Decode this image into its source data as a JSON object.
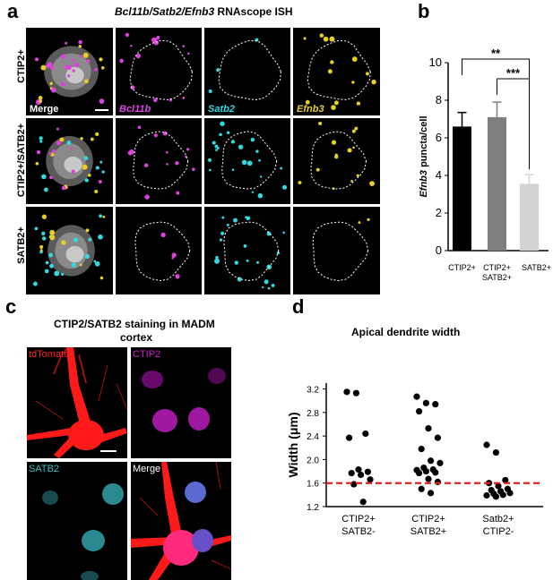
{
  "panels": {
    "a": {
      "letter": "a",
      "title_parts": [
        "Bcl11b",
        "/",
        "Satb2",
        "/",
        "Efnb3",
        " RNAscope ISH"
      ],
      "rows": [
        "CTIP2+",
        "CTIP2+/SATB2+",
        "SATB2+"
      ],
      "channels": [
        "Merge",
        "Bcl11b",
        "Satb2",
        "Efnb3"
      ],
      "colors": {
        "bcl11b": "#e040e0",
        "satb2": "#30d8e0",
        "efnb3": "#e8d020",
        "dapi": "#c8c8c8",
        "outline": "#ffffff"
      }
    },
    "b": {
      "letter": "b"
    },
    "c": {
      "letter": "c",
      "title_line1": "CTIP2/SATB2 staining in MADM",
      "title_line2": "cortex",
      "channels": [
        "tdTomato",
        "CTIP2",
        "SATB2",
        "Merge"
      ],
      "colors": {
        "tdtomato": "#ff1a1a",
        "ctip2": "#d020d0",
        "satb2": "#40c0c8"
      }
    },
    "d": {
      "letter": "d"
    }
  },
  "chart_data": [
    {
      "type": "bar",
      "panel": "b",
      "ylabel": "Efnb3 puncta/cell",
      "ylabel_italic_part": "Efnb3",
      "ylabel_rest": " puncta/cell",
      "categories": [
        "CTIP2+",
        "CTIP2+\nSATB2+",
        "SATB2+"
      ],
      "category_lines": [
        [
          "CTIP2+"
        ],
        [
          "CTIP2+",
          "SATB2+"
        ],
        [
          "SATB2+"
        ]
      ],
      "values": [
        6.6,
        7.1,
        3.55
      ],
      "errors": [
        0.75,
        0.8,
        0.5
      ],
      "bar_colors": [
        "#000000",
        "#7f7f7f",
        "#d3d3d3"
      ],
      "ylim": [
        0,
        10
      ],
      "yticks": [
        "0",
        "2",
        "4",
        "6",
        "8",
        "10"
      ],
      "significance": [
        {
          "from": 0,
          "to": 2,
          "label": "**"
        },
        {
          "from": 1,
          "to": 2,
          "label": "***"
        }
      ]
    },
    {
      "type": "scatter",
      "panel": "d",
      "title": "Apical dendrite width",
      "ylabel": "Width (μm)",
      "ylim": [
        1.2,
        3.3
      ],
      "yticks": [
        "1.2",
        "1.6",
        "2.0",
        "2.4",
        "2.8",
        "3.2"
      ],
      "categories": [
        [
          "CTIP2+",
          "SATB2-"
        ],
        [
          "CTIP2+",
          "SATB2+"
        ],
        [
          "Satb2+",
          "CTIP2-"
        ]
      ],
      "reference_line": {
        "y": 1.6,
        "color": "#e02020",
        "style": "dashed"
      },
      "series": [
        {
          "values": [
            3.15,
            3.13,
            2.44,
            2.37,
            1.83,
            1.79,
            1.77,
            1.74,
            1.66,
            1.58,
            1.28
          ]
        },
        {
          "values": [
            3.07,
            2.96,
            2.94,
            2.82,
            2.53,
            2.37,
            2.18,
            1.98,
            1.94,
            1.86,
            1.83,
            1.82,
            1.8,
            1.78,
            1.77,
            1.67,
            1.62,
            1.5,
            1.43
          ]
        },
        {
          "values": [
            2.25,
            2.12,
            1.65,
            1.6,
            1.55,
            1.5,
            1.48,
            1.46,
            1.43,
            1.42,
            1.4,
            1.39,
            1.37
          ]
        }
      ]
    }
  ]
}
